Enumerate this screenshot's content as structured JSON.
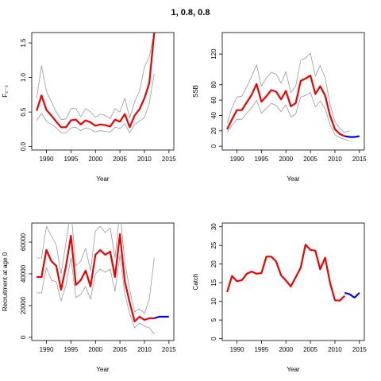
{
  "title": "1, 0.8, 0.8",
  "colors": {
    "estimate": "#ee0000",
    "bounds": "#999999",
    "projection": "#0000ee",
    "axis": "#000000"
  },
  "chart_data": [
    {
      "type": "line",
      "id": "F",
      "xlabel": "Year",
      "ylabel": "F₂₋₃",
      "xlim": [
        1987,
        2016
      ],
      "ylim": [
        -0.05,
        1.65
      ],
      "xticks": [
        1990,
        1995,
        2000,
        2005,
        2010,
        2015
      ],
      "yticks": [
        0.0,
        0.5,
        1.0,
        1.5
      ],
      "ytick_labels": [
        "0.0",
        "0.5",
        "1.0",
        "1.5"
      ],
      "series": [
        {
          "role": "estimate",
          "x": [
            1988,
            1989,
            1990,
            1991,
            1992,
            1993,
            1994,
            1995,
            1996,
            1997,
            1998,
            1999,
            2000,
            2001,
            2002,
            2003,
            2004,
            2005,
            2006,
            2007,
            2008,
            2009,
            2010,
            2011,
            2012
          ],
          "y": [
            0.52,
            0.74,
            0.53,
            0.45,
            0.36,
            0.28,
            0.28,
            0.38,
            0.39,
            0.32,
            0.38,
            0.35,
            0.3,
            0.32,
            0.31,
            0.29,
            0.39,
            0.36,
            0.47,
            0.28,
            0.45,
            0.54,
            0.7,
            0.92,
            1.65
          ]
        },
        {
          "role": "upper",
          "x": [
            1988,
            1989,
            1990,
            1991,
            1992,
            1993,
            1994,
            1995,
            1996,
            1997,
            1998,
            1999,
            2000,
            2001,
            2002,
            2003,
            2004,
            2005,
            2006,
            2007,
            2008,
            2009,
            2010,
            2011,
            2012
          ],
          "y": [
            0.7,
            1.17,
            0.8,
            0.65,
            0.5,
            0.39,
            0.4,
            0.55,
            0.55,
            0.43,
            0.55,
            0.5,
            0.42,
            0.47,
            0.45,
            0.4,
            0.55,
            0.5,
            0.7,
            0.41,
            0.65,
            0.8,
            1.15,
            1.3,
            1.65
          ]
        },
        {
          "role": "lower",
          "x": [
            1988,
            1989,
            1990,
            1991,
            1992,
            1993,
            1994,
            1995,
            1996,
            1997,
            1998,
            1999,
            2000,
            2001,
            2002,
            2003,
            2004,
            2005,
            2006,
            2007,
            2008,
            2009,
            2010,
            2011,
            2012
          ],
          "y": [
            0.38,
            0.48,
            0.37,
            0.32,
            0.27,
            0.2,
            0.2,
            0.27,
            0.28,
            0.23,
            0.27,
            0.25,
            0.21,
            0.23,
            0.22,
            0.21,
            0.28,
            0.26,
            0.33,
            0.2,
            0.32,
            0.37,
            0.42,
            0.63,
            1.05
          ]
        }
      ]
    },
    {
      "type": "line",
      "id": "SSB",
      "xlabel": "Year",
      "ylabel": "SSB",
      "xlim": [
        1987,
        2016
      ],
      "ylim": [
        -5,
        148
      ],
      "xticks": [
        1990,
        1995,
        2000,
        2005,
        2010,
        2015
      ],
      "yticks": [
        0,
        20,
        40,
        60,
        80,
        120
      ],
      "ytick_labels": [
        "0",
        "20",
        "40",
        "60",
        "80",
        "120"
      ],
      "series": [
        {
          "role": "estimate",
          "x": [
            1988,
            1989,
            1990,
            1991,
            1992,
            1993,
            1994,
            1995,
            1996,
            1997,
            1998,
            1999,
            2000,
            2001,
            2002,
            2003,
            2004,
            2005,
            2006,
            2007,
            2008,
            2009,
            2010,
            2011,
            2012
          ],
          "y": [
            22,
            35,
            47,
            47,
            57,
            67,
            81,
            58,
            65,
            73,
            71,
            61,
            72,
            52,
            56,
            85,
            88,
            92,
            68,
            78,
            66,
            40,
            22,
            16,
            13
          ]
        },
        {
          "role": "upper",
          "x": [
            1988,
            1989,
            1990,
            1991,
            1992,
            1993,
            1994,
            1995,
            1996,
            1997,
            1998,
            1999,
            2000,
            2001,
            2002,
            2003,
            2004,
            2005,
            2006,
            2007,
            2008,
            2009,
            2010,
            2011,
            2012,
            2013
          ],
          "y": [
            30,
            50,
            64,
            65,
            77,
            91,
            106,
            78,
            89,
            96,
            94,
            82,
            97,
            70,
            78,
            112,
            115,
            121,
            91,
            105,
            89,
            55,
            32,
            23,
            18,
            20
          ]
        },
        {
          "role": "lower",
          "x": [
            1988,
            1989,
            1990,
            1991,
            1992,
            1993,
            1994,
            1995,
            1996,
            1997,
            1998,
            1999,
            2000,
            2001,
            2002,
            2003,
            2004,
            2005,
            2006,
            2007,
            2008,
            2009,
            2010,
            2011,
            2012,
            2013
          ],
          "y": [
            18,
            27,
            35,
            35,
            43,
            50,
            60,
            43,
            49,
            56,
            53,
            45,
            54,
            38,
            42,
            64,
            66,
            70,
            51,
            59,
            49,
            28,
            15,
            11,
            9,
            7
          ]
        },
        {
          "role": "projection",
          "x": [
            2012,
            2013,
            2014,
            2015
          ],
          "y": [
            13,
            12,
            12,
            13
          ]
        }
      ]
    },
    {
      "type": "line",
      "id": "Recruitment",
      "xlabel": "Year",
      "ylabel": "Recruitment at age 0",
      "xlim": [
        1987,
        2016
      ],
      "ylim": [
        -2000,
        72000
      ],
      "xticks": [
        1990,
        1995,
        2000,
        2005,
        2010,
        2015
      ],
      "yticks": [
        0,
        20000,
        40000,
        60000
      ],
      "ytick_labels": [
        "0",
        "20000",
        "40000",
        "60000"
      ],
      "series": [
        {
          "role": "estimate",
          "x": [
            1988,
            1989,
            1990,
            1991,
            1992,
            1993,
            1994,
            1995,
            1996,
            1997,
            1998,
            1999,
            2000,
            2001,
            2002,
            2003,
            2004,
            2005,
            2006,
            2007,
            2008,
            2009,
            2010,
            2011,
            2012
          ],
          "y": [
            38000,
            38000,
            55000,
            48000,
            45000,
            30000,
            45000,
            64000,
            33000,
            36000,
            42000,
            32000,
            52000,
            55000,
            52000,
            54000,
            38000,
            65000,
            35000,
            22000,
            10000,
            13000,
            11000,
            12000,
            12000
          ]
        },
        {
          "role": "upper",
          "x": [
            1988,
            1989,
            1990,
            1991,
            1992,
            1993,
            1994,
            1995,
            1996,
            1997,
            1998,
            1999,
            2000,
            2001,
            2002,
            2003,
            2004,
            2005,
            2006,
            2007,
            2008,
            2009,
            2010,
            2011,
            2012
          ],
          "y": [
            50000,
            50000,
            70000,
            64000,
            58000,
            40000,
            60000,
            80000,
            45000,
            48000,
            56000,
            42000,
            67000,
            70000,
            66000,
            69000,
            50000,
            80000,
            47000,
            30000,
            16000,
            18000,
            15000,
            24000,
            50000
          ]
        },
        {
          "role": "lower",
          "x": [
            1988,
            1989,
            1990,
            1991,
            1992,
            1993,
            1994,
            1995,
            1996,
            1997,
            1998,
            1999,
            2000,
            2001,
            2002,
            2003,
            2004,
            2005,
            2006,
            2007,
            2008,
            2009,
            2010,
            2011,
            2012
          ],
          "y": [
            28000,
            28000,
            44000,
            36000,
            35000,
            23000,
            33000,
            50000,
            25000,
            27000,
            32000,
            24000,
            40000,
            43000,
            41000,
            43000,
            29000,
            52000,
            27000,
            15000,
            6000,
            9000,
            7000,
            6000,
            2000
          ]
        },
        {
          "role": "projection",
          "x": [
            2012,
            2013,
            2014,
            2015
          ],
          "y": [
            12000,
            13000,
            13000,
            13000
          ]
        }
      ]
    },
    {
      "type": "line",
      "id": "Catch",
      "xlabel": "Year",
      "ylabel": "Catch",
      "xlim": [
        1987,
        2016
      ],
      "ylim": [
        -0.5,
        31
      ],
      "xticks": [
        1990,
        1995,
        2000,
        2005,
        2010,
        2015
      ],
      "yticks": [
        0,
        5,
        10,
        15,
        20,
        25,
        30
      ],
      "ytick_labels": [
        "0",
        "5",
        "10",
        "15",
        "20",
        "25",
        "30"
      ],
      "series": [
        {
          "role": "estimate",
          "x": [
            1988,
            1989,
            1990,
            1991,
            1992,
            1993,
            1994,
            1995,
            1996,
            1997,
            1998,
            1999,
            2000,
            2001,
            2002,
            2003,
            2004,
            2005,
            2006,
            2007,
            2008,
            2009,
            2010,
            2011,
            2012
          ],
          "y": [
            12.5,
            16.8,
            15.4,
            15.7,
            17.4,
            18.0,
            17.4,
            17.6,
            22.0,
            22.0,
            20.7,
            17.0,
            15.6,
            14.0,
            16.5,
            19.0,
            25.2,
            23.8,
            23.6,
            18.6,
            21.7,
            15.0,
            10.3,
            10.2,
            11.5
          ]
        },
        {
          "role": "projection",
          "x": [
            2012,
            2013,
            2014,
            2015
          ],
          "y": [
            12.3,
            11.9,
            11.0,
            12.3
          ]
        }
      ]
    }
  ]
}
